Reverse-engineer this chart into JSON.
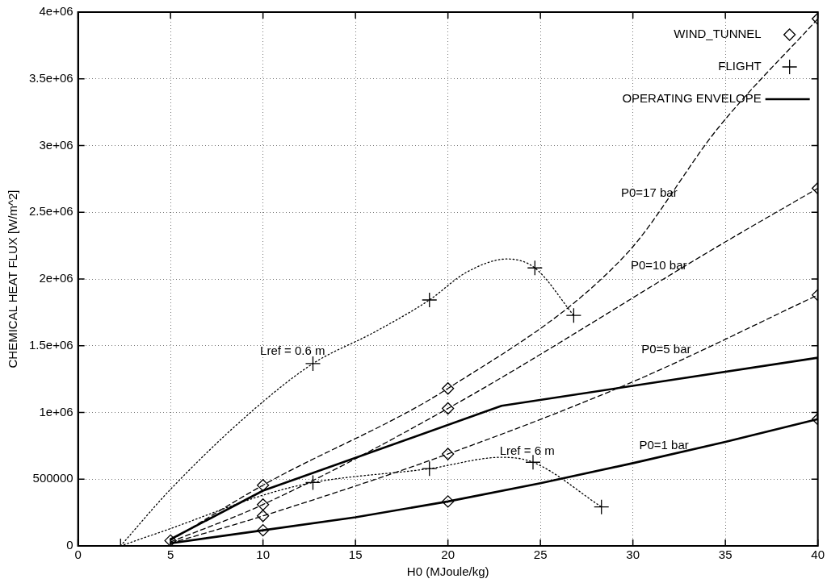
{
  "chart_data": {
    "type": "scatter",
    "xlabel": "H0 (MJoule/kg)",
    "ylabel": "CHEMICAL HEAT FLUX [W/m^2]",
    "xlim": [
      0,
      40
    ],
    "xticks": [
      0,
      5,
      10,
      15,
      20,
      25,
      30,
      35,
      40
    ],
    "ylim": [
      0,
      4000000
    ],
    "yticks": [
      0,
      500000,
      {
        "value": 1000000,
        "label": "1e+06"
      },
      {
        "value": 1500000,
        "label": "1.5e+06"
      },
      {
        "value": 2000000,
        "label": "2e+06"
      },
      {
        "value": 2500000,
        "label": "2.5e+06"
      },
      {
        "value": 3000000,
        "label": "3e+06"
      },
      {
        "value": 3500000,
        "label": "3.5e+06"
      },
      {
        "value": 4000000,
        "label": "4e+06"
      }
    ],
    "grid": true,
    "legend": "top right",
    "series": [
      {
        "name": "WIND_TUNNEL",
        "type": "scatter",
        "marker": "diamond",
        "color": "#000000",
        "x": [
          5,
          10,
          10,
          10,
          10,
          20,
          20,
          20,
          20,
          40,
          40,
          40,
          40
        ],
        "values": [
          40000,
          455000,
          310000,
          225000,
          117000,
          1180000,
          1030000,
          689000,
          333000,
          3950000,
          2680000,
          1880000,
          950000
        ]
      },
      {
        "name": "FLIGHT",
        "type": "scatter",
        "marker": "cross",
        "color": "#000000",
        "x": [
          2.3,
          12.7,
          19,
          24.7,
          26.8,
          12.7,
          19,
          24.6,
          28.3
        ],
        "values": [
          0,
          1366000,
          1843000,
          2083000,
          1727000,
          475000,
          579000,
          627000,
          292000
        ]
      },
      {
        "name": "OPERATING ENVELOPE",
        "type": "line",
        "marker": "none",
        "line_style": "solid",
        "color": "#000000",
        "x": [
          5,
          10,
          22.9,
          40,
          40,
          35,
          30,
          25,
          20,
          15,
          10,
          5
        ],
        "values": [
          50000,
          414000,
          1050000,
          1410000,
          950000,
          780000,
          620000,
          470000,
          333000,
          215000,
          117000,
          20000
        ]
      },
      {
        "type": "line",
        "marker": "none",
        "line_style": "dashed",
        "color": "#000000",
        "x": [
          5,
          10,
          20,
          29.6,
          34.6,
          40
        ],
        "values": [
          40000,
          455000,
          1180000,
          2180000,
          3130000,
          3950000
        ]
      },
      {
        "type": "line",
        "marker": "none",
        "line_style": "dashed",
        "color": "#000000",
        "x": [
          5,
          10,
          20,
          34.9,
          40
        ],
        "values": [
          30000,
          310000,
          1030000,
          2270000,
          2680000
        ]
      },
      {
        "type": "line",
        "marker": "none",
        "line_style": "dashed",
        "color": "#000000",
        "x": [
          5,
          10,
          20,
          30,
          40
        ],
        "values": [
          20000,
          225000,
          689000,
          1230000,
          1880000
        ]
      },
      {
        "type": "line",
        "marker": "none",
        "line_style": "dotted",
        "color": "#000000",
        "x": [
          2.3,
          5,
          9.3,
          12.7,
          16,
          19,
          21,
          23.2,
          24.7,
          26.8
        ],
        "values": [
          0,
          424000,
          997000,
          1366000,
          1600000,
          1843000,
          2050000,
          2150000,
          2083000,
          1727000
        ]
      },
      {
        "type": "line",
        "marker": "none",
        "line_style": "dotted",
        "color": "#000000",
        "x": [
          2.3,
          5,
          10,
          12.7,
          19,
          22.9,
          24.6,
          28.3
        ],
        "values": [
          0,
          130000,
          380000,
          475000,
          579000,
          664000,
          627000,
          292000
        ]
      }
    ],
    "annotations": [
      "P0=17 bar",
      "P0=10 bar",
      "P0=5 bar",
      "P0=1 bar",
      "Lref = 0.6 m",
      "Lref = 6 m"
    ]
  }
}
